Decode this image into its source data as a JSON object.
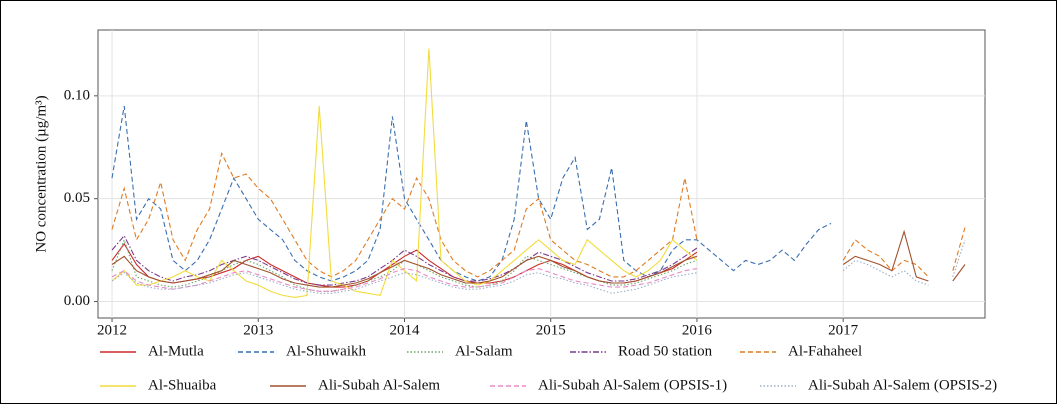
{
  "chart_data": {
    "type": "line",
    "y_label": "NO concentration (µg/m³)",
    "xlim": [
      2011.904,
      2017.97
    ],
    "ylim": [
      -0.008,
      0.132
    ],
    "xticks": [
      2012,
      2013,
      2014,
      2015,
      2016,
      2017
    ],
    "yticks": [
      {
        "value": 0,
        "label": "0.00"
      },
      {
        "value": 0.05,
        "label": "0.05"
      },
      {
        "value": 0.1,
        "label": "0.10"
      }
    ],
    "grid": true,
    "legend": "bottom",
    "x": [
      2012,
      2012.083,
      2012.167,
      2012.25,
      2012.333,
      2012.417,
      2012.5,
      2012.583,
      2012.667,
      2012.75,
      2012.833,
      2012.917,
      2013,
      2013.083,
      2013.167,
      2013.25,
      2013.333,
      2013.417,
      2013.5,
      2013.583,
      2013.667,
      2013.75,
      2013.833,
      2013.917,
      2014,
      2014.083,
      2014.167,
      2014.25,
      2014.333,
      2014.417,
      2014.5,
      2014.583,
      2014.667,
      2014.75,
      2014.833,
      2014.917,
      2015,
      2015.083,
      2015.167,
      2015.25,
      2015.333,
      2015.417,
      2015.5,
      2015.583,
      2015.667,
      2015.75,
      2015.833,
      2015.917,
      2016,
      2016.083,
      2016.167,
      2016.25,
      2016.333,
      2016.417,
      2016.5,
      2016.583,
      2016.667,
      2016.75,
      2016.833,
      2016.917,
      2017,
      2017.083,
      2017.167,
      2017.25,
      2017.333,
      2017.417,
      2017.5,
      2017.583,
      2017.667,
      2017.75,
      2017.833
    ],
    "series": [
      {
        "name": "Al-Mutla",
        "color": "#cc2a2a",
        "dash": "solid",
        "values": [
          0.02,
          0.028,
          0.018,
          0.012,
          0.01,
          0.009,
          0.01,
          0.011,
          0.012,
          0.014,
          0.016,
          0.02,
          0.022,
          0.018,
          0.015,
          0.012,
          0.009,
          0.008,
          0.007,
          0.007,
          0.008,
          0.01,
          0.014,
          0.018,
          0.022,
          0.025,
          0.02,
          0.016,
          0.012,
          0.01,
          0.009,
          0.009,
          0.01,
          0.012,
          0.015,
          0.018,
          0.02,
          0.018,
          0.015,
          0.012,
          0.01,
          0.009,
          0.009,
          0.01,
          0.012,
          0.014,
          0.016,
          0.02,
          0.024,
          null,
          null,
          null,
          null,
          null,
          null,
          null,
          null,
          null,
          null,
          null,
          null,
          null,
          null,
          null,
          null,
          null,
          null,
          null,
          null,
          null,
          null
        ]
      },
      {
        "name": "Al-Shuwaikh",
        "color": "#3a6fb0",
        "dash": "dashed",
        "values": [
          0.06,
          0.095,
          0.04,
          0.05,
          0.045,
          0.02,
          0.015,
          0.02,
          0.03,
          0.045,
          0.06,
          0.05,
          0.04,
          0.035,
          0.03,
          0.02,
          0.015,
          0.012,
          0.01,
          0.012,
          0.015,
          0.02,
          0.035,
          0.09,
          0.05,
          0.04,
          0.03,
          0.02,
          0.015,
          0.012,
          0.01,
          0.012,
          0.02,
          0.04,
          0.088,
          0.05,
          0.04,
          0.06,
          0.07,
          0.035,
          0.04,
          0.065,
          0.02,
          0.015,
          0.012,
          0.015,
          0.025,
          0.03,
          0.03,
          0.025,
          0.02,
          0.015,
          0.02,
          0.018,
          0.02,
          0.025,
          0.02,
          0.028,
          0.035,
          0.038,
          null,
          null,
          null,
          null,
          null,
          null,
          null,
          null,
          null,
          null,
          null
        ]
      },
      {
        "name": "Al-Salam",
        "color": "#6aa86a",
        "dash": "dotted",
        "values": [
          0.015,
          0.03,
          0.012,
          0.01,
          0.008,
          0.007,
          0.008,
          0.01,
          0.012,
          0.015,
          0.018,
          0.02,
          0.018,
          0.015,
          0.012,
          0.008,
          0.006,
          0.005,
          0.005,
          0.006,
          0.008,
          0.01,
          0.012,
          0.015,
          0.02,
          0.018,
          0.015,
          0.012,
          0.01,
          0.008,
          0.007,
          0.008,
          0.01,
          0.015,
          0.022,
          0.02,
          0.018,
          0.016,
          0.014,
          0.012,
          0.01,
          0.008,
          0.008,
          0.009,
          0.011,
          0.013,
          0.015,
          0.018,
          0.02,
          null,
          null,
          null,
          null,
          null,
          null,
          null,
          null,
          null,
          null,
          null,
          null,
          null,
          null,
          null,
          null,
          null,
          null,
          null,
          null,
          null,
          null
        ]
      },
      {
        "name": "Road 50 station",
        "color": "#7a3a8a",
        "dash": "dashdot",
        "values": [
          0.025,
          0.032,
          0.02,
          0.015,
          0.012,
          0.01,
          0.012,
          0.013,
          0.015,
          0.018,
          0.02,
          0.022,
          0.02,
          0.017,
          0.014,
          0.011,
          0.009,
          0.008,
          0.008,
          0.009,
          0.01,
          0.012,
          0.016,
          0.02,
          0.025,
          0.022,
          0.018,
          0.015,
          0.012,
          0.01,
          0.01,
          0.011,
          0.013,
          0.016,
          0.02,
          0.024,
          0.022,
          0.02,
          0.017,
          0.014,
          0.012,
          0.01,
          0.01,
          0.011,
          0.013,
          0.015,
          0.018,
          0.022,
          0.026,
          null,
          null,
          null,
          null,
          null,
          null,
          null,
          null,
          null,
          null,
          null,
          null,
          null,
          null,
          null,
          null,
          null,
          null,
          null,
          null,
          null,
          null
        ]
      },
      {
        "name": "Al-Fahaheel",
        "color": "#e07b20",
        "dash": "dashed",
        "values": [
          0.035,
          0.055,
          0.03,
          0.04,
          0.058,
          0.03,
          0.02,
          0.035,
          0.045,
          0.072,
          0.06,
          0.062,
          0.055,
          0.05,
          0.04,
          0.03,
          0.02,
          0.015,
          0.012,
          0.015,
          0.02,
          0.03,
          0.04,
          0.05,
          0.045,
          0.06,
          0.05,
          0.03,
          0.02,
          0.015,
          0.012,
          0.015,
          0.02,
          0.025,
          0.045,
          0.05,
          0.03,
          0.025,
          0.02,
          0.018,
          0.015,
          0.012,
          0.012,
          0.015,
          0.02,
          0.025,
          0.03,
          0.06,
          0.03,
          null,
          null,
          null,
          null,
          null,
          null,
          null,
          null,
          null,
          null,
          null,
          0.02,
          0.03,
          0.025,
          0.022,
          0.015,
          0.02,
          0.018,
          0.012,
          null,
          0.015,
          0.036
        ]
      },
      {
        "name": "Al-Shuaiba",
        "color": "#f2dc3c",
        "dash": "solid",
        "values": [
          0.01,
          0.015,
          0.008,
          0.008,
          0.01,
          0.012,
          0.015,
          0.012,
          0.01,
          0.02,
          0.015,
          0.01,
          0.008,
          0.005,
          0.003,
          0.002,
          0.003,
          0.095,
          0.01,
          0.008,
          0.005,
          0.004,
          0.003,
          0.02,
          0.015,
          0.01,
          0.123,
          0.02,
          0.015,
          0.01,
          0.008,
          0.01,
          0.015,
          0.02,
          0.025,
          0.03,
          0.025,
          0.02,
          0.018,
          0.03,
          0.025,
          0.02,
          0.015,
          0.012,
          0.015,
          0.02,
          0.03,
          0.025,
          0.02,
          null,
          null,
          null,
          null,
          null,
          null,
          null,
          null,
          null,
          null,
          null,
          null,
          null,
          null,
          null,
          null,
          null,
          null,
          null,
          null,
          null,
          null
        ]
      },
      {
        "name": "Ali-Subah Al-Salem",
        "color": "#a0522d",
        "dash": "solid",
        "values": [
          0.018,
          0.022,
          0.015,
          0.012,
          0.01,
          0.009,
          0.01,
          0.011,
          0.013,
          0.015,
          0.02,
          0.018,
          0.016,
          0.014,
          0.011,
          0.009,
          0.008,
          0.007,
          0.007,
          0.008,
          0.009,
          0.011,
          0.014,
          0.017,
          0.02,
          0.018,
          0.016,
          0.013,
          0.011,
          0.009,
          0.009,
          0.01,
          0.012,
          0.016,
          0.02,
          0.022,
          0.02,
          0.017,
          0.015,
          0.012,
          0.01,
          0.009,
          0.009,
          0.01,
          0.012,
          0.014,
          0.017,
          0.02,
          0.022,
          null,
          null,
          null,
          null,
          null,
          null,
          null,
          null,
          null,
          null,
          null,
          0.018,
          0.022,
          0.02,
          0.018,
          0.015,
          0.034,
          0.012,
          0.01,
          null,
          0.01,
          0.018
        ]
      },
      {
        "name": "Ali-Subah Al-Salem (OPSIS-1)",
        "color": "#e88ac8",
        "dash": "dashed",
        "values": [
          0.012,
          0.015,
          0.01,
          0.008,
          0.007,
          0.006,
          0.007,
          0.008,
          0.01,
          0.012,
          0.014,
          0.015,
          0.013,
          0.011,
          0.009,
          0.007,
          0.006,
          0.005,
          0.005,
          0.006,
          0.007,
          0.009,
          0.011,
          0.014,
          0.016,
          0.015,
          0.012,
          0.01,
          0.008,
          0.007,
          0.007,
          0.008,
          0.009,
          0.012,
          0.015,
          0.016,
          0.014,
          0.012,
          0.01,
          0.009,
          0.008,
          0.007,
          0.007,
          0.008,
          0.009,
          0.011,
          0.013,
          0.015,
          0.016,
          null,
          null,
          null,
          null,
          null,
          null,
          null,
          null,
          null,
          null,
          null,
          null,
          null,
          null,
          null,
          null,
          null,
          null,
          null,
          null,
          null,
          null
        ]
      },
      {
        "name": "Ali-Subah Al-Salem (OPSIS-2)",
        "color": "#9ab0c8",
        "dash": "dotted",
        "values": [
          0.01,
          0.014,
          0.009,
          0.007,
          0.006,
          0.006,
          0.007,
          0.008,
          0.009,
          0.011,
          0.013,
          0.014,
          0.012,
          0.01,
          0.008,
          0.006,
          0.005,
          0.004,
          0.004,
          0.005,
          0.006,
          0.008,
          0.01,
          0.012,
          0.014,
          0.013,
          0.011,
          0.009,
          0.007,
          0.006,
          0.006,
          0.007,
          0.008,
          0.01,
          0.013,
          0.014,
          0.012,
          0.011,
          0.009,
          0.008,
          0.006,
          0.004,
          0.005,
          0.006,
          0.008,
          0.01,
          0.012,
          0.013,
          0.014,
          null,
          null,
          null,
          null,
          null,
          null,
          null,
          null,
          null,
          null,
          null,
          0.015,
          0.02,
          0.018,
          0.015,
          0.012,
          0.015,
          0.01,
          0.008,
          null,
          0.012,
          0.03
        ]
      }
    ]
  }
}
